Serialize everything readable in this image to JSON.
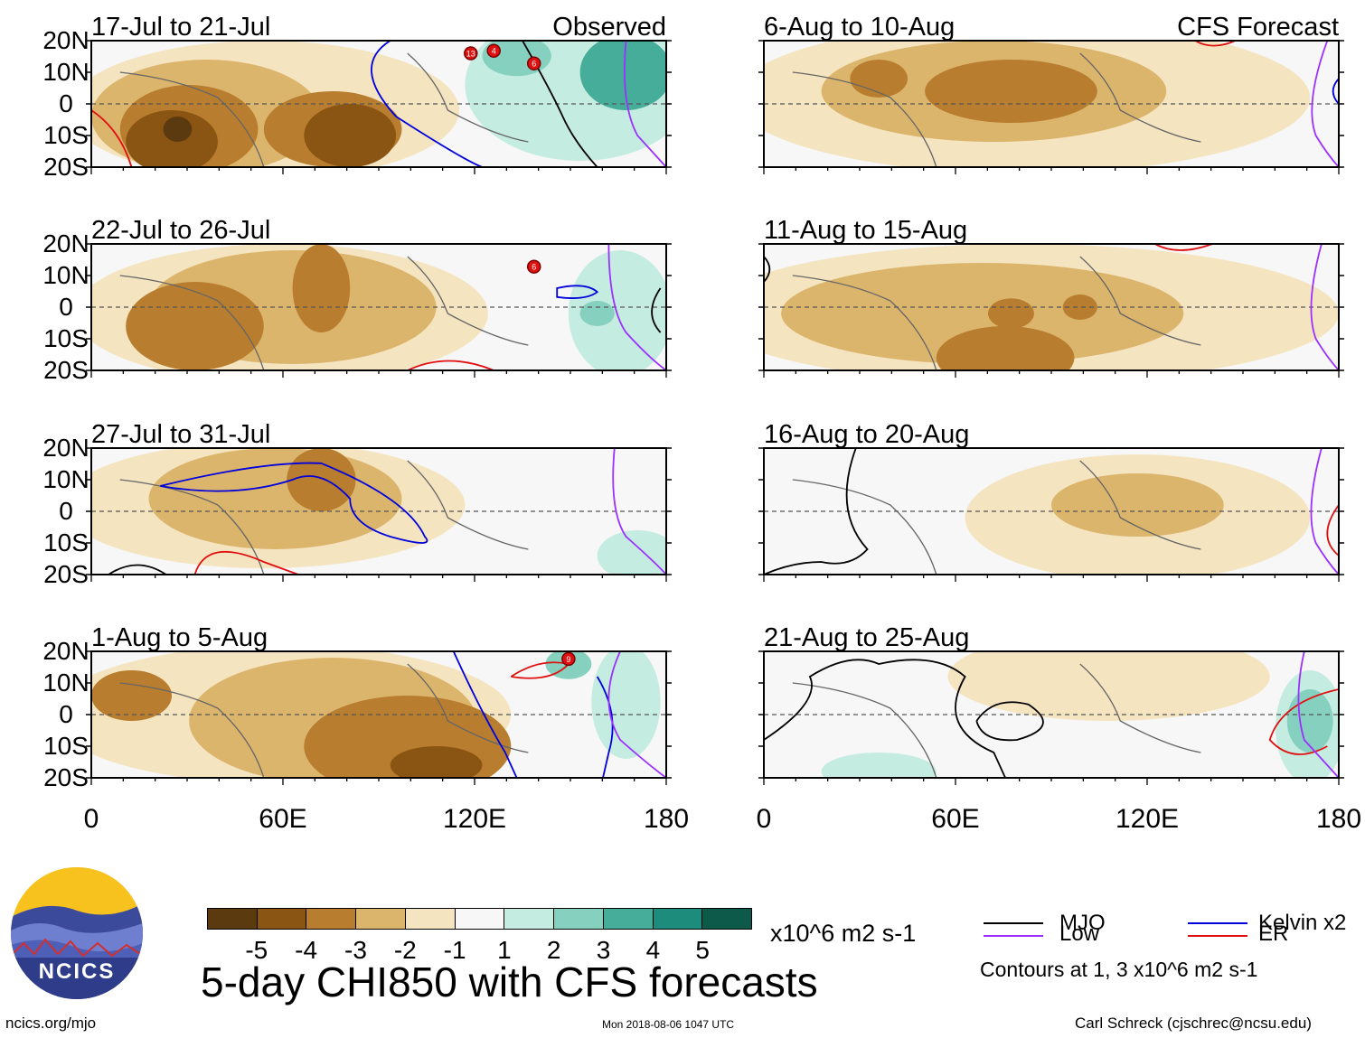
{
  "panels_left": [
    {
      "date": "17-Jul to 21-Jul",
      "tag": "Observed"
    },
    {
      "date": "22-Jul to 26-Jul",
      "tag": ""
    },
    {
      "date": "27-Jul to 31-Jul",
      "tag": ""
    },
    {
      "date": "1-Aug to 5-Aug",
      "tag": ""
    }
  ],
  "panels_right": [
    {
      "date": "6-Aug to 10-Aug",
      "tag": "CFS Forecast"
    },
    {
      "date": "11-Aug to 15-Aug",
      "tag": ""
    },
    {
      "date": "16-Aug to 20-Aug",
      "tag": ""
    },
    {
      "date": "21-Aug to 25-Aug",
      "tag": ""
    }
  ],
  "lat_labels": [
    "20N",
    "10N",
    "0",
    "10S",
    "20S"
  ],
  "lon_labels": [
    "0",
    "60E",
    "120E",
    "180"
  ],
  "colorbar": {
    "colors": [
      "#5b3a10",
      "#8a5413",
      "#b87d2e",
      "#dcb56d",
      "#f5e4c0",
      "#f7f7f7",
      "#c5ece0",
      "#86d0c0",
      "#46ad9b",
      "#1e8c7d",
      "#0e5a4a"
    ],
    "ticks": [
      "-5",
      "-4",
      "-3",
      "-2",
      "-1",
      "1",
      "2",
      "3",
      "4",
      "5"
    ],
    "units": "x10^6 m2 s-1"
  },
  "title": "5-day CHI850 with CFS forecasts",
  "legend": {
    "mjo": "MJO",
    "mjo_color": "#000000",
    "kelvin": "Kelvin x2",
    "kelvin_color": "#0000dd",
    "low": "Low",
    "low_color": "#9b30ff",
    "er": "ER",
    "er_color": "#e01010",
    "contours_note": "Contours at 1, 3 x10^6 m2 s-1"
  },
  "logo_text": "NCICS",
  "url_text": "ncics.org/mjo",
  "timestamp": "Mon 2018-08-06 1047 UTC",
  "credit": "Carl Schreck (cjschrec@ncsu.edu)",
  "storm_labels": [
    "13",
    "4",
    "6",
    "6",
    "9"
  ]
}
